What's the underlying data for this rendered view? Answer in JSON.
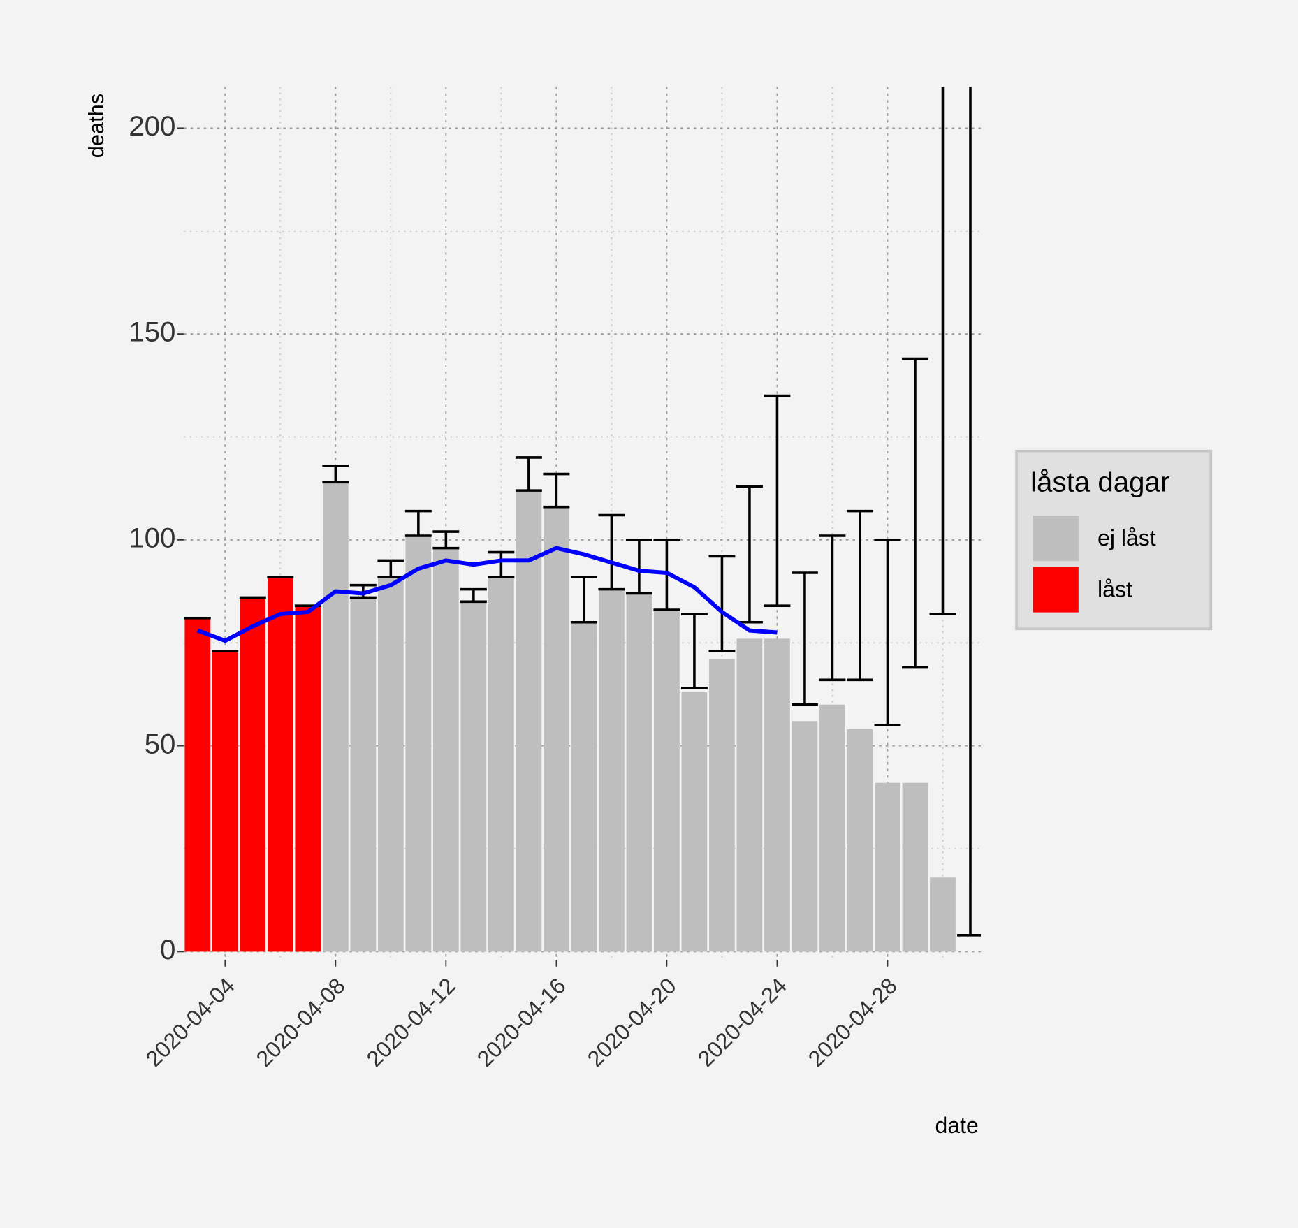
{
  "chart_data": {
    "type": "bar",
    "y_label": "deaths",
    "x_label": "date",
    "x": [
      "2020-04-03",
      "2020-04-04",
      "2020-04-05",
      "2020-04-06",
      "2020-04-07",
      "2020-04-08",
      "2020-04-09",
      "2020-04-10",
      "2020-04-11",
      "2020-04-12",
      "2020-04-13",
      "2020-04-14",
      "2020-04-15",
      "2020-04-16",
      "2020-04-17",
      "2020-04-18",
      "2020-04-19",
      "2020-04-20",
      "2020-04-21",
      "2020-04-22",
      "2020-04-23",
      "2020-04-24",
      "2020-04-25",
      "2020-04-26",
      "2020-04-27",
      "2020-04-28",
      "2020-04-29",
      "2020-04-30",
      "2020-05-01"
    ],
    "values": [
      81,
      73,
      86,
      91,
      84,
      114,
      86,
      91,
      101,
      98,
      85,
      91,
      112,
      108,
      80,
      88,
      87,
      83,
      63,
      71,
      76,
      76,
      56,
      60,
      54,
      41,
      41,
      18,
      0
    ],
    "group": [
      "låst",
      "låst",
      "låst",
      "låst",
      "låst",
      "ej låst",
      "ej låst",
      "ej låst",
      "ej låst",
      "ej låst",
      "ej låst",
      "ej låst",
      "ej låst",
      "ej låst",
      "ej låst",
      "ej låst",
      "ej låst",
      "ej låst",
      "ej låst",
      "ej låst",
      "ej låst",
      "ej låst",
      "ej låst",
      "ej låst",
      "ej låst",
      "ej låst",
      "ej låst",
      "ej låst",
      "ej låst"
    ],
    "error_low": [
      81,
      73,
      86,
      91,
      84,
      114,
      86,
      91,
      101,
      98,
      85,
      91,
      112,
      108,
      80,
      88,
      87,
      83,
      64,
      73,
      80,
      84,
      60,
      66,
      66,
      55,
      69,
      82,
      4
    ],
    "error_high": [
      81,
      73,
      86,
      91,
      84,
      118,
      89,
      95,
      107,
      102,
      88,
      97,
      120,
      116,
      91,
      106,
      100,
      100,
      82,
      96,
      113,
      135,
      92,
      101,
      107,
      100,
      144,
      300,
      300
    ],
    "trend": {
      "color": "#0000ff",
      "values": [
        78,
        75.5,
        79,
        82,
        82.5,
        87.5,
        87,
        89,
        93,
        95,
        94,
        95,
        95,
        98,
        96.5,
        94.5,
        92.5,
        92,
        88.5,
        82.5,
        78,
        77.5,
        null,
        null,
        null,
        null,
        null,
        null,
        null
      ]
    },
    "legend": {
      "title": "låsta dagar",
      "position": "right"
    },
    "series": [
      {
        "name": "ej låst",
        "color": "#bebebe"
      },
      {
        "name": "låst",
        "color": "#ff0000"
      }
    ],
    "ylim": [
      -2,
      210
    ],
    "yticks": [
      0,
      50,
      100,
      150,
      200
    ],
    "xticks": [
      "2020-04-04",
      "2020-04-08",
      "2020-04-12",
      "2020-04-16",
      "2020-04-20",
      "2020-04-24",
      "2020-04-28"
    ],
    "grid": true
  }
}
